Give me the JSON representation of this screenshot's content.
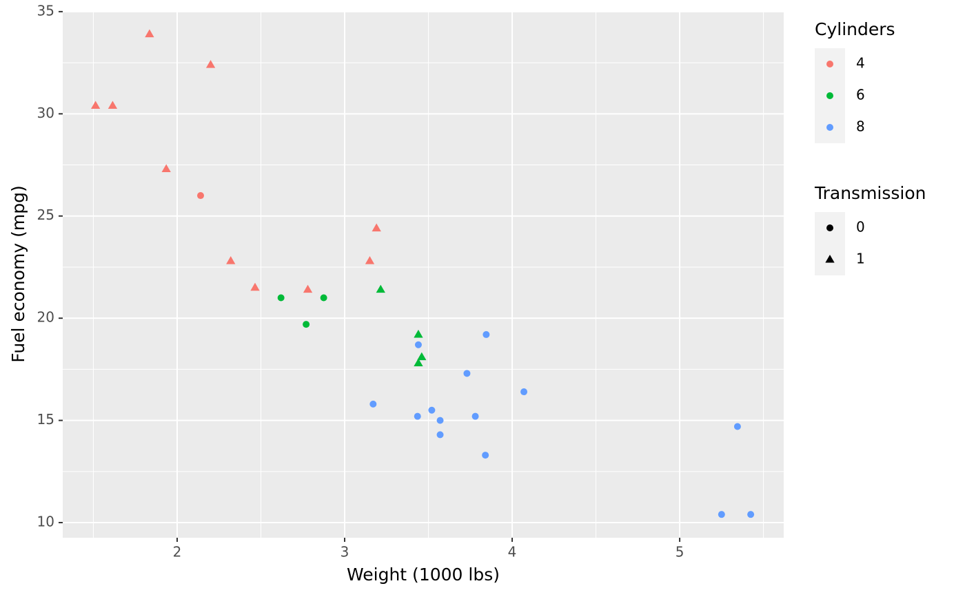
{
  "chart_data": {
    "type": "scatter",
    "x_label": "Weight (1000 lbs)",
    "y_label": "Fuel economy (mpg)",
    "xlim": [
      1.317,
      5.621
    ],
    "ylim": [
      9.26,
      35.03
    ],
    "xticks": [
      2,
      3,
      4,
      5
    ],
    "yticks": [
      10,
      15,
      20,
      25,
      30,
      35
    ],
    "grid": true,
    "panel_color": "#EBEBEB",
    "color_legend_title": "Cylinders",
    "shape_legend": {
      "title": "Transmission",
      "entries": [
        {
          "name": "0",
          "shape": "circle"
        },
        {
          "name": "1",
          "shape": "triangle"
        }
      ]
    },
    "series": [
      {
        "name": "4",
        "color": "#F8766D",
        "x": [
          2.32,
          3.19,
          3.15,
          2.2,
          1.615,
          1.835,
          2.465,
          1.935,
          2.14,
          1.513,
          2.78
        ],
        "values": [
          22.8,
          24.4,
          22.8,
          32.4,
          30.4,
          33.9,
          21.5,
          27.3,
          26.0,
          30.4,
          21.4
        ],
        "transmission": [
          "1",
          "1",
          "1",
          "1",
          "1",
          "1",
          "1",
          "1",
          "0",
          "1",
          "1"
        ]
      },
      {
        "name": "6",
        "color": "#00BA38",
        "x": [
          2.62,
          2.875,
          3.215,
          3.46,
          3.44,
          3.44,
          2.77
        ],
        "values": [
          21.0,
          21.0,
          21.4,
          18.1,
          19.2,
          17.8,
          19.7
        ],
        "transmission": [
          "0",
          "0",
          "1",
          "1",
          "1",
          "1",
          "0"
        ]
      },
      {
        "name": "8",
        "color": "#619CFF",
        "x": [
          3.44,
          3.57,
          4.07,
          3.73,
          3.78,
          5.25,
          5.424,
          5.345,
          3.52,
          3.435,
          3.84,
          3.845,
          3.17,
          3.57
        ],
        "values": [
          18.7,
          14.3,
          16.4,
          17.3,
          15.2,
          10.4,
          10.4,
          14.7,
          15.5,
          15.2,
          13.3,
          19.2,
          15.8,
          15.0
        ],
        "transmission": [
          "0",
          "0",
          "0",
          "0",
          "0",
          "0",
          "0",
          "0",
          "0",
          "0",
          "0",
          "0",
          "0",
          "0"
        ]
      }
    ]
  }
}
